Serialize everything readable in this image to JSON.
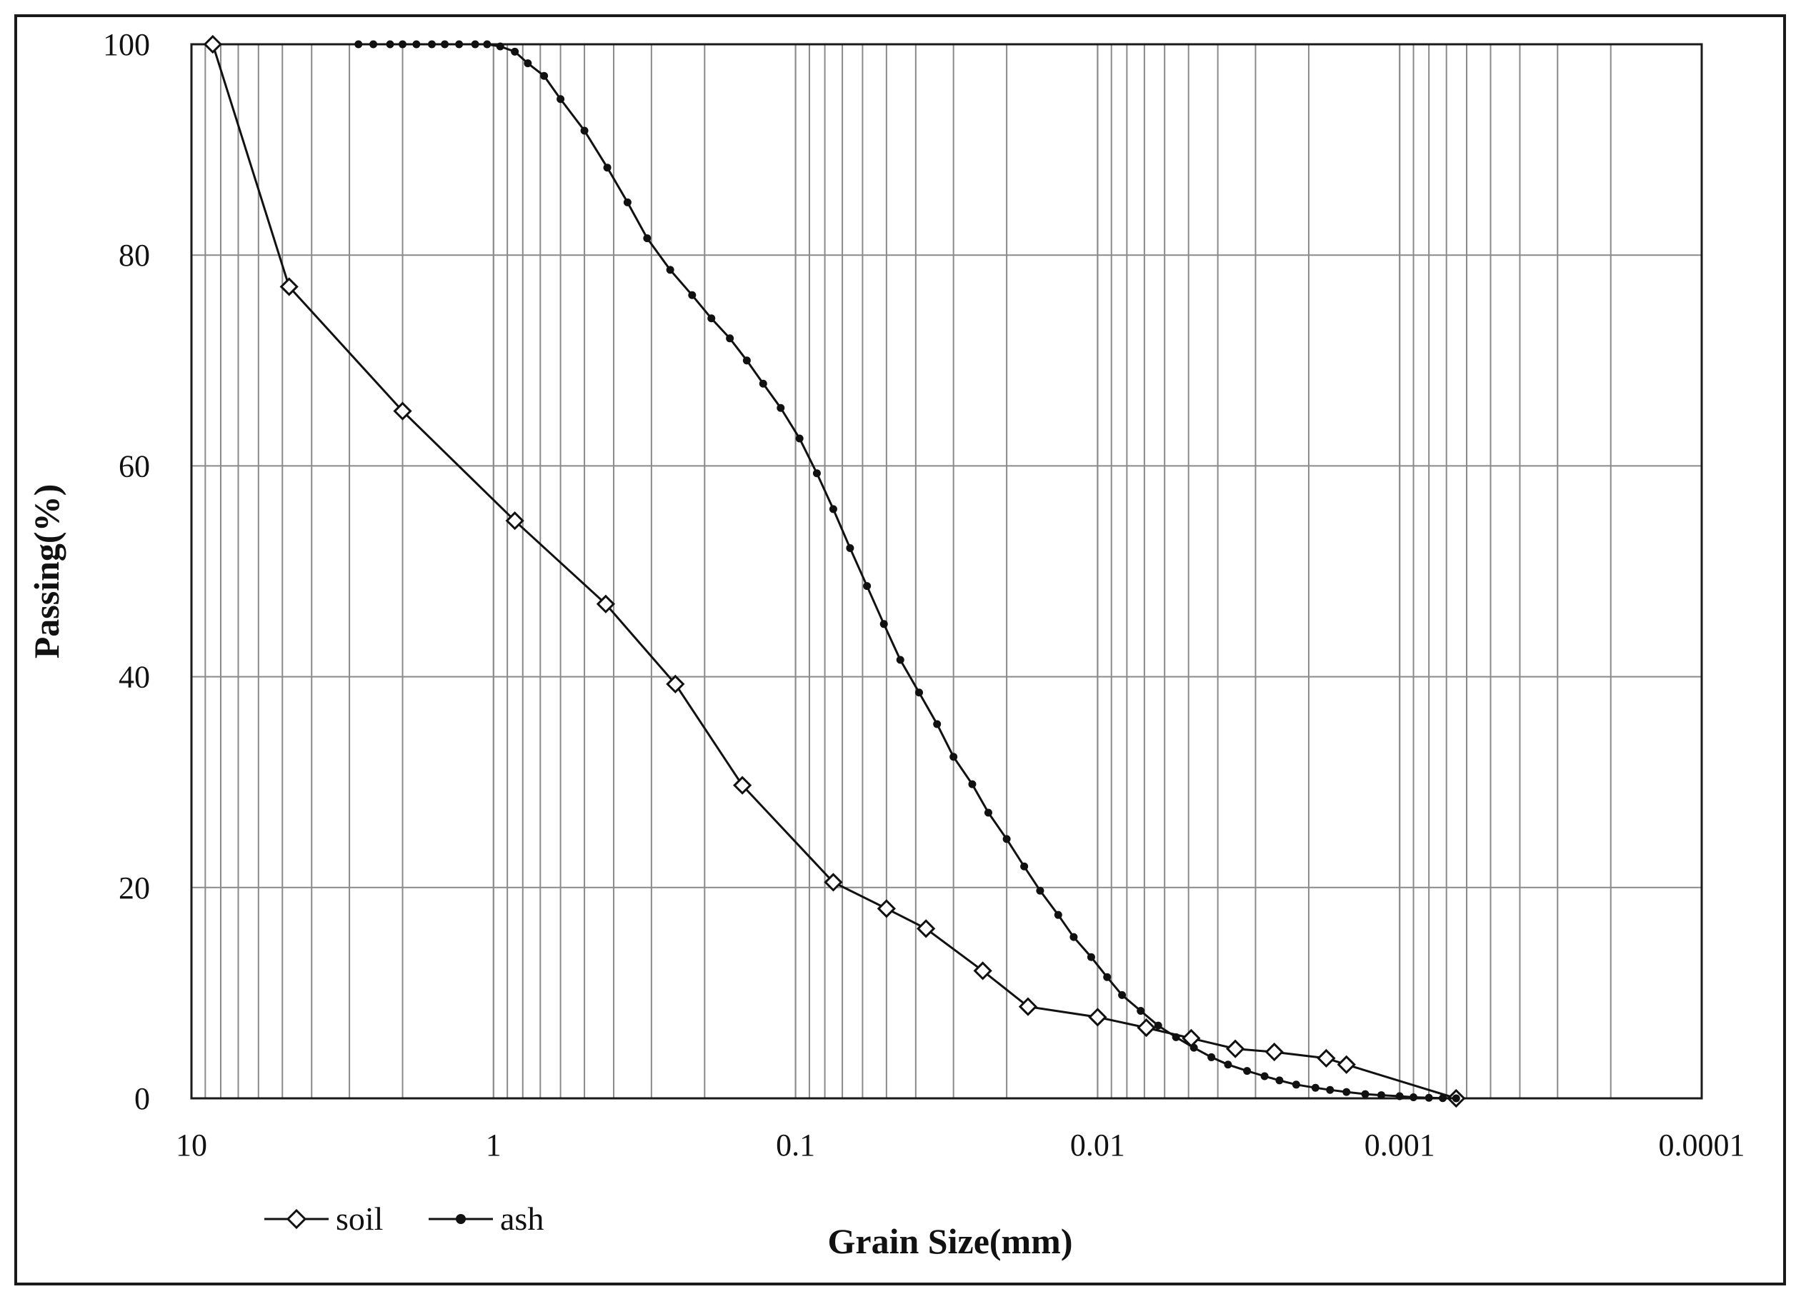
{
  "chart_data": {
    "type": "line",
    "title": "",
    "xlabel": "Grain Size(mm)",
    "ylabel": "Passing(%)",
    "x_scale": "log",
    "x_reversed": true,
    "xlim": [
      10,
      0.0001
    ],
    "ylim": [
      0,
      100
    ],
    "x_tick_labels": [
      "10",
      "1",
      "0.1",
      "0.01",
      "0.001",
      "0.0001"
    ],
    "x_ticks": [
      10,
      1,
      0.1,
      0.01,
      0.001,
      0.0001
    ],
    "y_tick_labels": [
      "0",
      "20",
      "40",
      "60",
      "80",
      "100"
    ],
    "y_ticks": [
      0,
      20,
      40,
      60,
      80,
      100
    ],
    "grid": true,
    "legend_position": "bottom-left",
    "series": [
      {
        "name": "soil",
        "marker": "open-diamond",
        "color": "#111111",
        "x": [
          8.5,
          4.75,
          2.0,
          0.85,
          0.425,
          0.25,
          0.15,
          0.075,
          0.05,
          0.037,
          0.024,
          0.017,
          0.01,
          0.0069,
          0.0049,
          0.0035,
          0.0026,
          0.00175,
          0.0015,
          0.00065
        ],
        "y": [
          100,
          77,
          65.2,
          54.8,
          46.9,
          39.3,
          29.7,
          20.5,
          18.0,
          16.1,
          12.1,
          8.7,
          7.7,
          6.7,
          5.7,
          4.7,
          4.4,
          3.8,
          3.2,
          0
        ]
      },
      {
        "name": "ash",
        "marker": "filled-dot",
        "color": "#111111",
        "x": [
          2.8,
          2.5,
          2.2,
          2.0,
          1.8,
          1.6,
          1.45,
          1.3,
          1.15,
          1.05,
          0.95,
          0.85,
          0.77,
          0.68,
          0.6,
          0.5,
          0.42,
          0.36,
          0.31,
          0.26,
          0.22,
          0.19,
          0.165,
          0.145,
          0.128,
          0.112,
          0.097,
          0.085,
          0.075,
          0.066,
          0.058,
          0.051,
          0.045,
          0.039,
          0.034,
          0.03,
          0.026,
          0.023,
          0.02,
          0.0175,
          0.0155,
          0.0135,
          0.012,
          0.0105,
          0.0093,
          0.0083,
          0.0072,
          0.0063,
          0.0055,
          0.0048,
          0.0042,
          0.0037,
          0.0032,
          0.0028,
          0.0025,
          0.0022,
          0.0019,
          0.0017,
          0.0015,
          0.0013,
          0.00115,
          0.001,
          0.0009,
          0.0008,
          0.00072,
          0.00065
        ],
        "y": [
          100,
          100,
          100,
          100,
          100,
          100,
          100,
          100,
          100,
          100,
          99.8,
          99.3,
          98.2,
          97,
          94.8,
          91.8,
          88.3,
          85,
          81.6,
          78.6,
          76.2,
          74,
          72.1,
          70,
          67.8,
          65.5,
          62.6,
          59.3,
          55.9,
          52.2,
          48.6,
          45,
          41.6,
          38.5,
          35.5,
          32.4,
          29.8,
          27.1,
          24.6,
          22,
          19.7,
          17.4,
          15.3,
          13.4,
          11.5,
          9.8,
          8.3,
          6.9,
          5.8,
          4.8,
          3.9,
          3.2,
          2.6,
          2.1,
          1.7,
          1.3,
          1.0,
          0.8,
          0.6,
          0.4,
          0.3,
          0.2,
          0.1,
          0.05,
          0.02,
          0
        ]
      }
    ]
  }
}
